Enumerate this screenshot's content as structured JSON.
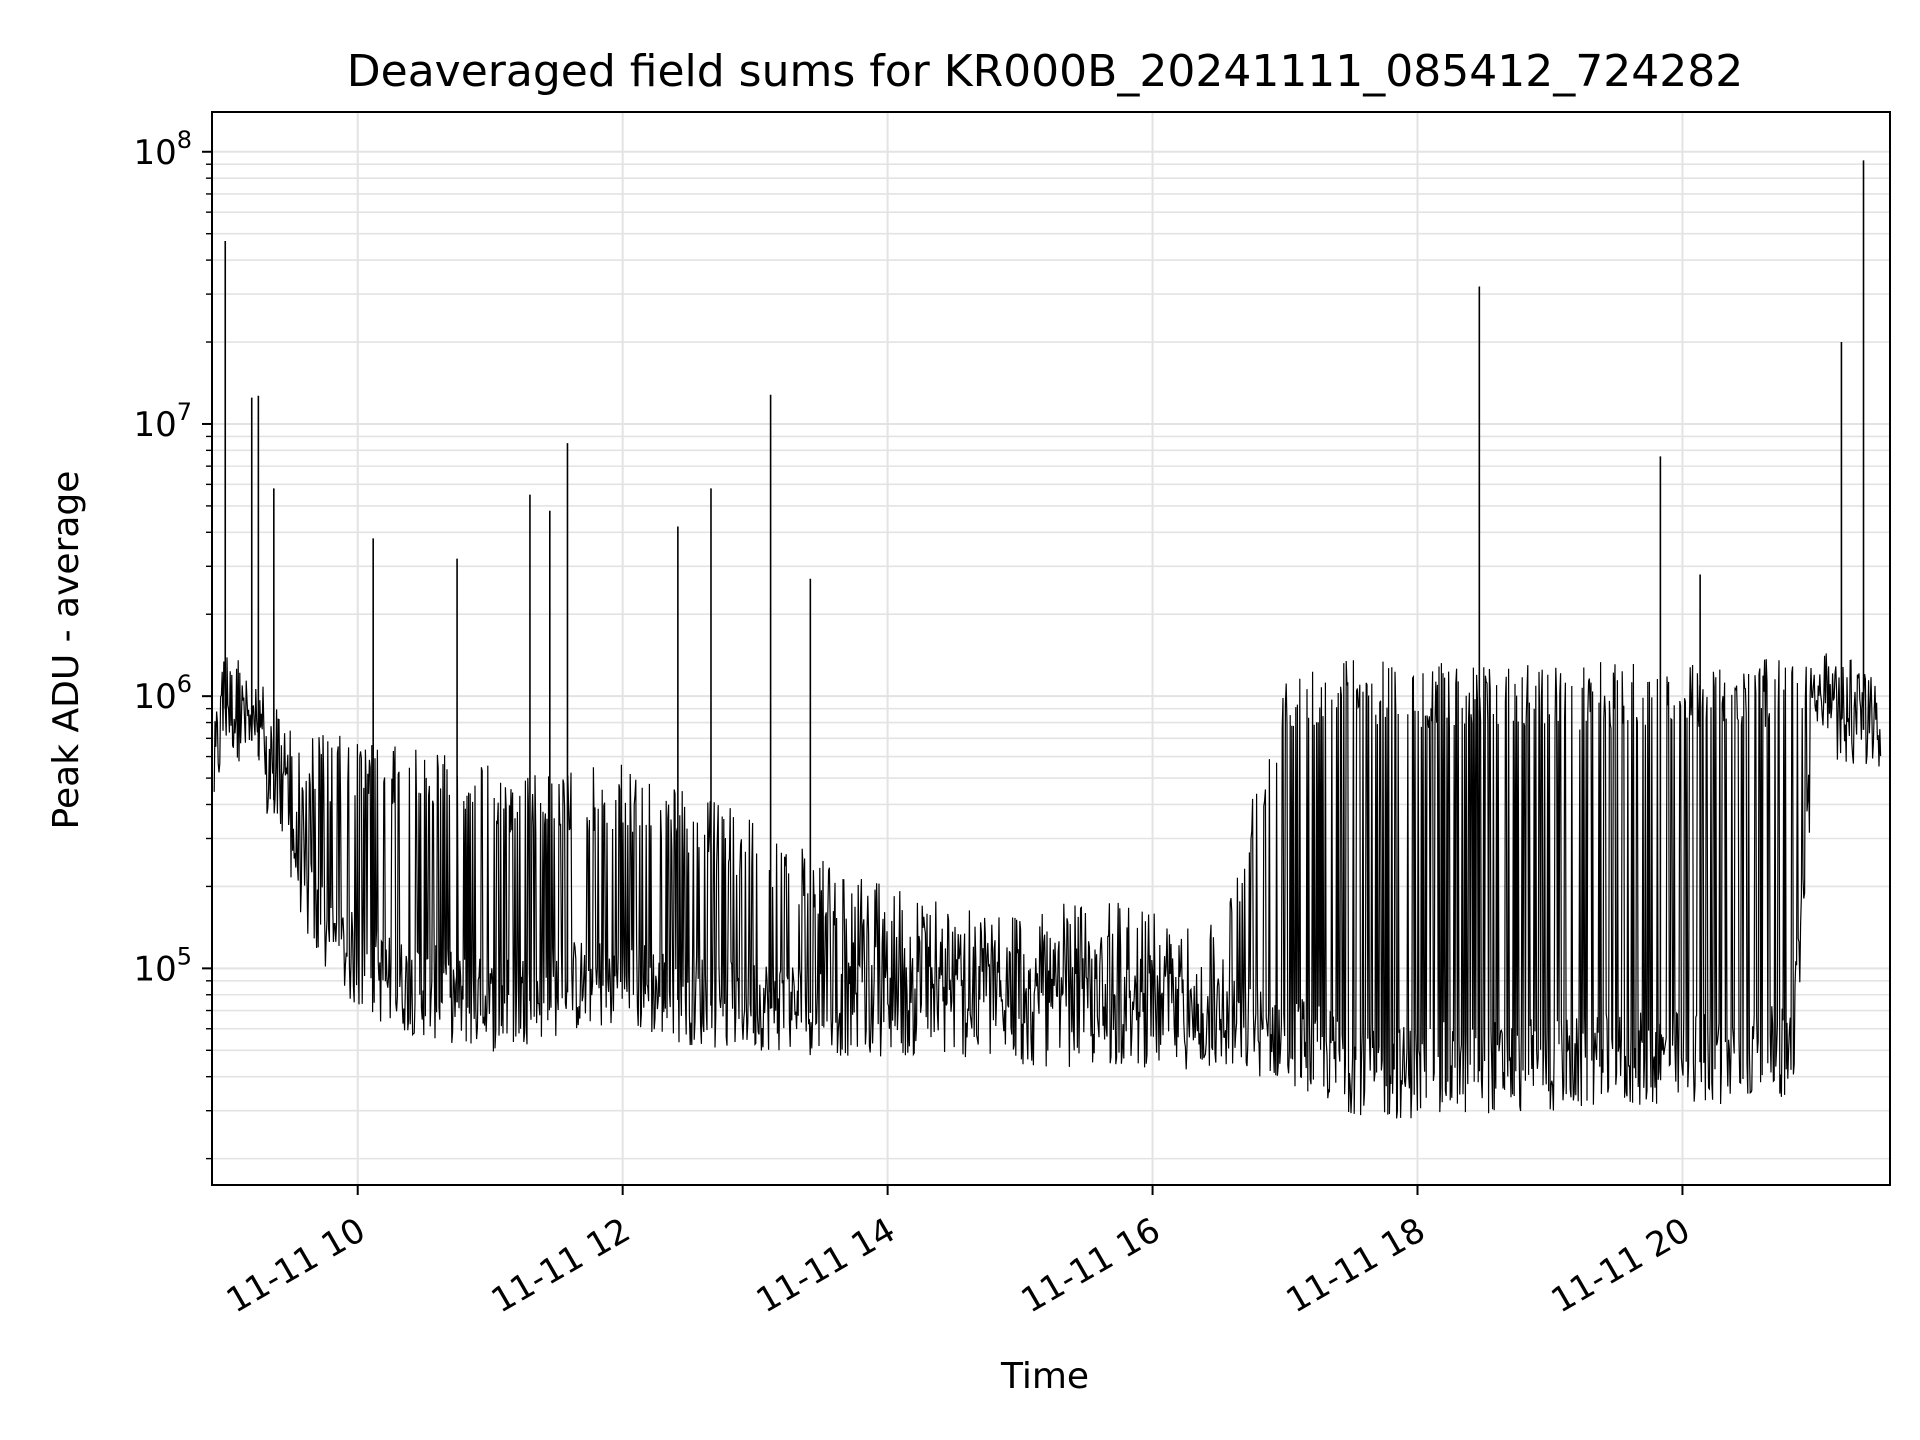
{
  "chart_data": {
    "type": "line",
    "title": "Deaveraged field sums for KR000B_20241111_085412_724282",
    "xlabel": "Time",
    "ylabel": "Peak ADU - average",
    "y_scale": "log",
    "ylim": [
      16000,
      140000000
    ],
    "xlim": [
      "2024-11-11 08:54",
      "2024-11-11 21:34"
    ],
    "grid": true,
    "x_ticks": [
      {
        "value": "2024-11-11 10:00",
        "label": "11-11 10"
      },
      {
        "value": "2024-11-11 12:00",
        "label": "11-11 12"
      },
      {
        "value": "2024-11-11 14:00",
        "label": "11-11 14"
      },
      {
        "value": "2024-11-11 16:00",
        "label": "11-11 16"
      },
      {
        "value": "2024-11-11 18:00",
        "label": "11-11 18"
      },
      {
        "value": "2024-11-11 20:00",
        "label": "11-11 20"
      }
    ],
    "y_ticks": [
      {
        "value": 100000,
        "base": "10",
        "exp": "5"
      },
      {
        "value": 1000000,
        "base": "10",
        "exp": "6"
      },
      {
        "value": 10000000,
        "base": "10",
        "exp": "7"
      },
      {
        "value": 100000000,
        "base": "10",
        "exp": "8"
      }
    ],
    "series": [
      {
        "color": "#000000",
        "x": [
          "2024-11-11 08:55",
          "2024-11-11 09:00",
          "2024-11-11 09:05",
          "2024-11-11 09:10",
          "2024-11-11 09:15",
          "2024-11-11 09:20",
          "2024-11-11 09:30",
          "2024-11-11 09:40",
          "2024-11-11 09:50",
          "2024-11-11 10:00",
          "2024-11-11 10:15",
          "2024-11-11 10:30",
          "2024-11-11 10:45",
          "2024-11-11 11:00",
          "2024-11-11 11:15",
          "2024-11-11 11:30",
          "2024-11-11 11:45",
          "2024-11-11 12:00",
          "2024-11-11 12:15",
          "2024-11-11 12:30",
          "2024-11-11 12:45",
          "2024-11-11 13:00",
          "2024-11-11 13:15",
          "2024-11-11 13:30",
          "2024-11-11 13:45",
          "2024-11-11 14:00",
          "2024-11-11 14:30",
          "2024-11-11 15:00",
          "2024-11-11 15:30",
          "2024-11-11 16:00",
          "2024-11-11 16:30",
          "2024-11-11 17:00",
          "2024-11-11 17:15",
          "2024-11-11 17:30",
          "2024-11-11 17:45",
          "2024-11-11 18:00",
          "2024-11-11 18:30",
          "2024-11-11 19:00",
          "2024-11-11 19:30",
          "2024-11-11 20:00",
          "2024-11-11 20:30",
          "2024-11-11 20:50",
          "2024-11-11 21:00",
          "2024-11-11 21:15",
          "2024-11-11 21:30"
        ],
        "baseline": [
          500000,
          900000,
          850000,
          750000,
          600000,
          450000,
          300000,
          150000,
          120000,
          100000,
          85000,
          80000,
          75000,
          70000,
          75000,
          80000,
          85000,
          85000,
          80000,
          75000,
          72000,
          72000,
          70000,
          68000,
          68000,
          68000,
          68000,
          62000,
          62000,
          62000,
          60000,
          55000,
          48000,
          42000,
          40000,
          40000,
          42000,
          42000,
          44000,
          45000,
          46000,
          48000,
          900000,
          800000,
          700000
        ],
        "upper": [
          1400000,
          1700000,
          1500000,
          1300000,
          1200000,
          950000,
          800000,
          750000,
          720000,
          700000,
          650000,
          700000,
          620000,
          560000,
          520000,
          520000,
          560000,
          560000,
          500000,
          450000,
          400000,
          380000,
          300000,
          250000,
          220000,
          200000,
          180000,
          160000,
          180000,
          170000,
          150000,
          1300000,
          1400000,
          1400000,
          1400000,
          1300000,
          1400000,
          1300000,
          1350000,
          1350000,
          1350000,
          1400000,
          1500000,
          1400000,
          1200000
        ],
        "spikes": [
          {
            "x": "2024-11-11 09:00",
            "y": 47000000
          },
          {
            "x": "2024-11-11 09:12",
            "y": 12500000
          },
          {
            "x": "2024-11-11 09:15",
            "y": 12700000
          },
          {
            "x": "2024-11-11 09:22",
            "y": 5800000
          },
          {
            "x": "2024-11-11 10:07",
            "y": 3800000
          },
          {
            "x": "2024-11-11 10:45",
            "y": 3200000
          },
          {
            "x": "2024-11-11 11:18",
            "y": 5500000
          },
          {
            "x": "2024-11-11 11:27",
            "y": 4800000
          },
          {
            "x": "2024-11-11 11:35",
            "y": 8500000
          },
          {
            "x": "2024-11-11 12:25",
            "y": 4200000
          },
          {
            "x": "2024-11-11 12:40",
            "y": 5800000
          },
          {
            "x": "2024-11-11 13:07",
            "y": 12800000
          },
          {
            "x": "2024-11-11 13:25",
            "y": 2700000
          },
          {
            "x": "2024-11-11 18:28",
            "y": 32000000
          },
          {
            "x": "2024-11-11 19:50",
            "y": 7600000
          },
          {
            "x": "2024-11-11 20:08",
            "y": 2800000
          },
          {
            "x": "2024-11-11 21:12",
            "y": 20000000
          },
          {
            "x": "2024-11-11 21:22",
            "y": 93000000
          }
        ]
      }
    ]
  }
}
